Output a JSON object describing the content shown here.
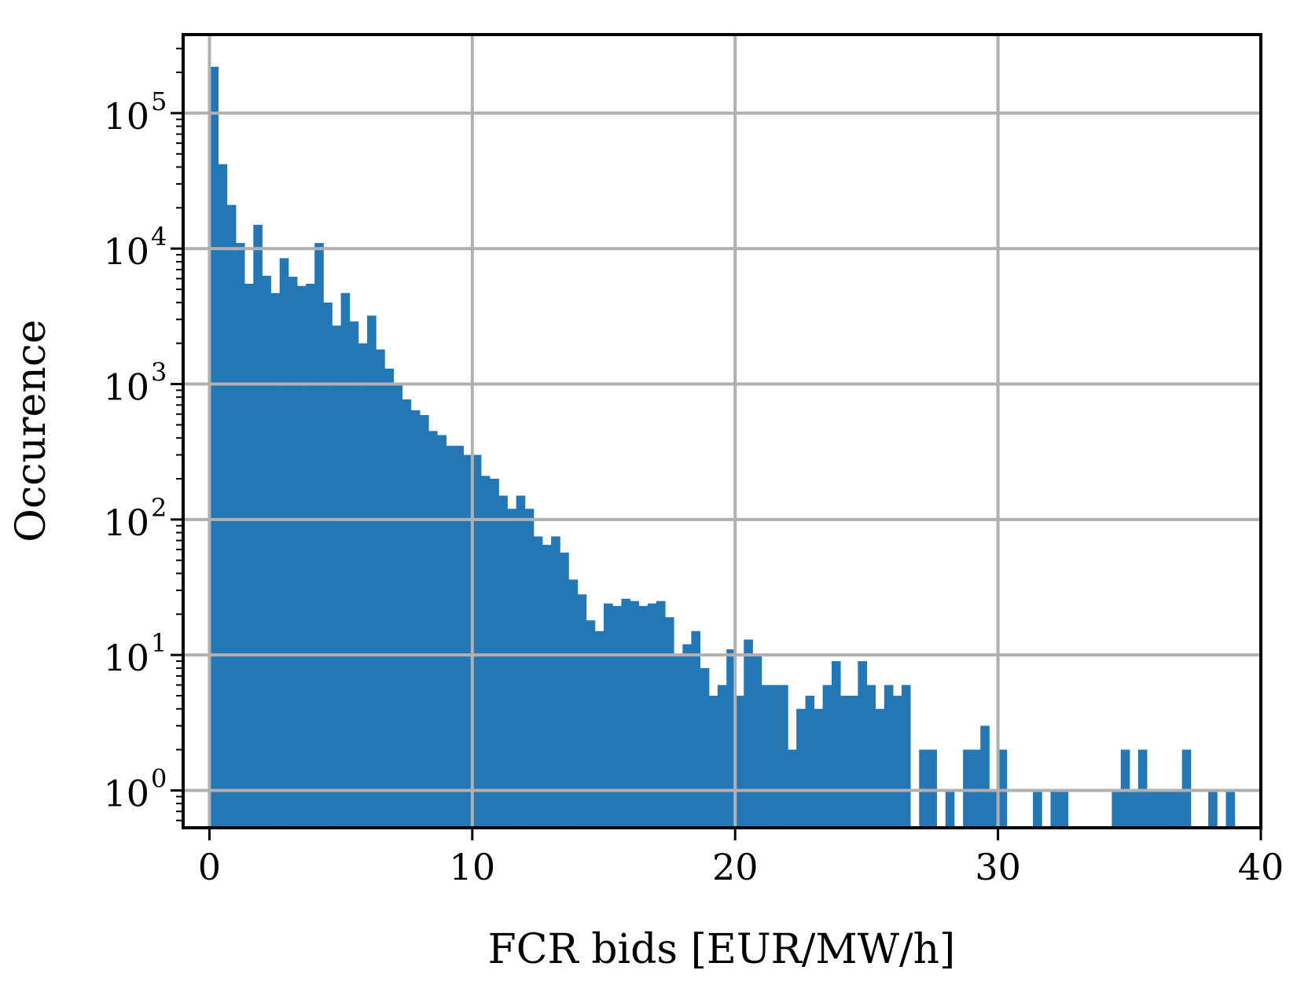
{
  "chart_data": {
    "type": "bar",
    "title": "",
    "xlabel": "FCR bids [EUR/MW/h]",
    "ylabel": "Occurence",
    "xlim": [
      -1,
      40
    ],
    "ylim": [
      0.53,
      380000
    ],
    "yscale": "log",
    "grid": true,
    "bar_color": "#2377b4",
    "grid_color": "#b0b0b0",
    "bin_width": 0.33,
    "x_ticks": [
      {
        "value": 0,
        "label": "0"
      },
      {
        "value": 10,
        "label": "10"
      },
      {
        "value": 20,
        "label": "20"
      },
      {
        "value": 30,
        "label": "30"
      },
      {
        "value": 40,
        "label": "40"
      }
    ],
    "y_ticks": [
      {
        "value": 1,
        "base": "10",
        "exp": "0"
      },
      {
        "value": 10,
        "base": "10",
        "exp": "1"
      },
      {
        "value": 100,
        "base": "10",
        "exp": "2"
      },
      {
        "value": 1000,
        "base": "10",
        "exp": "3"
      },
      {
        "value": 10000,
        "base": "10",
        "exp": "4"
      },
      {
        "value": 100000,
        "base": "10",
        "exp": "5"
      }
    ],
    "bins_left": [
      0.0,
      0.33,
      0.67,
      1.0,
      1.33,
      1.67,
      2.0,
      2.33,
      2.67,
      3.0,
      3.33,
      3.67,
      4.0,
      4.33,
      4.67,
      5.0,
      5.33,
      5.67,
      6.0,
      6.33,
      6.67,
      7.0,
      7.33,
      7.67,
      8.0,
      8.33,
      8.67,
      9.0,
      9.33,
      9.67,
      10.0,
      10.33,
      10.67,
      11.0,
      11.33,
      11.67,
      12.0,
      12.33,
      12.67,
      13.0,
      13.33,
      13.67,
      14.0,
      14.33,
      14.67,
      15.0,
      15.33,
      15.67,
      16.0,
      16.33,
      16.67,
      17.0,
      17.33,
      17.67,
      18.0,
      18.33,
      18.67,
      19.0,
      19.33,
      19.67,
      20.0,
      20.33,
      20.67,
      21.0,
      21.33,
      21.67,
      22.0,
      22.33,
      22.67,
      23.0,
      23.33,
      23.67,
      24.0,
      24.33,
      24.67,
      25.0,
      25.33,
      25.67,
      26.0,
      26.33,
      26.67,
      27.0,
      27.33,
      27.67,
      28.0,
      28.33,
      28.67,
      29.0,
      29.33,
      29.67,
      30.0,
      30.33,
      30.67,
      31.0,
      31.33,
      31.67,
      32.0,
      32.33,
      32.67,
      33.0,
      33.33,
      33.67,
      34.0,
      34.33,
      34.67,
      35.0,
      35.33,
      35.67,
      36.0,
      36.33,
      36.67,
      37.0,
      37.33,
      37.67,
      38.0,
      38.33,
      38.67,
      39.0,
      39.33,
      39.67
    ],
    "values": [
      220000,
      42000,
      21000,
      11000,
      5500,
      15000,
      6300,
      4700,
      8500,
      6200,
      5300,
      5500,
      11000,
      4000,
      2700,
      4700,
      2900,
      2000,
      3200,
      1800,
      1300,
      1000,
      770,
      640,
      590,
      450,
      420,
      350,
      350,
      300,
      300,
      210,
      200,
      150,
      120,
      150,
      120,
      75,
      65,
      75,
      57,
      36,
      28,
      18,
      15,
      24,
      23,
      26,
      25,
      23,
      24,
      25,
      19,
      10,
      12,
      15,
      8,
      5,
      6,
      11,
      5,
      13,
      10,
      6,
      6,
      6,
      2,
      4,
      5,
      4,
      6,
      9,
      5,
      5,
      9,
      6,
      4,
      6,
      5,
      6,
      0,
      2,
      2,
      0,
      1,
      0,
      2,
      2,
      3,
      1,
      2,
      0,
      0,
      0,
      1,
      0,
      1,
      1,
      0,
      0,
      0,
      0,
      0,
      1,
      2,
      1,
      2,
      1,
      1,
      1,
      1,
      2,
      0,
      0,
      1,
      0,
      1,
      0
    ]
  }
}
